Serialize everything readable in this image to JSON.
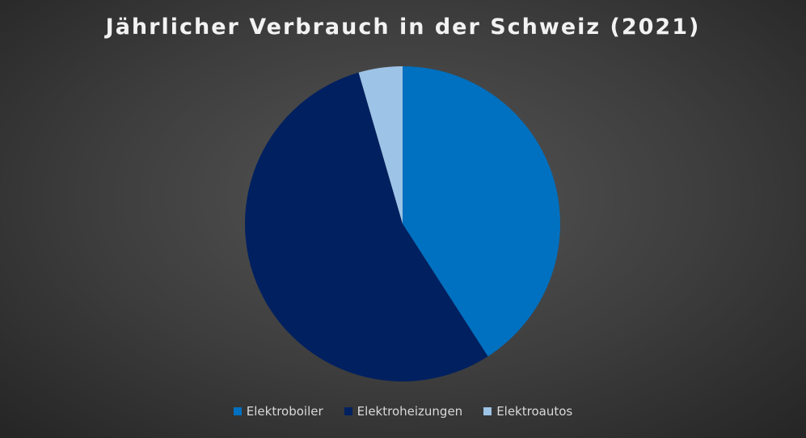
{
  "chart_data": {
    "type": "pie",
    "title": "Jährlicher Verbrauch in der Schweiz (2021)",
    "categories": [
      "Elektroboiler",
      "Elektroheizungen",
      "Elektroautos"
    ],
    "values": [
      40.9,
      54.6,
      4.5
    ],
    "colors": [
      "#0070c0",
      "#002060",
      "#9dc3e6"
    ],
    "legend_position": "bottom",
    "start_angle_deg": 0,
    "direction": "clockwise"
  }
}
